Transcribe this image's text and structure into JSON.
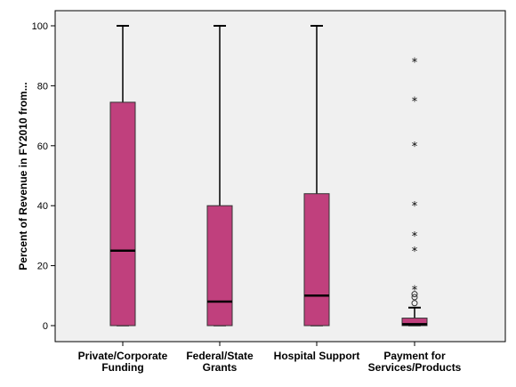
{
  "chart_data": {
    "type": "boxplot",
    "ylabel": "Percent of Revenue in FY2010 from...",
    "ylim": [
      0,
      100
    ],
    "yticks": [
      0,
      20,
      40,
      60,
      80,
      100
    ],
    "grid": false,
    "plot_background": "#f0f0f0",
    "box_color": "#c0407d",
    "categories": [
      "Private/Corporate Funding",
      "Federal/State Grants",
      "Hospital Support",
      "Payment for Services/Products"
    ],
    "category_label_lines": [
      [
        "Private/Corporate",
        "Funding"
      ],
      [
        "Federal/State",
        "Grants"
      ],
      [
        "Hospital Support"
      ],
      [
        "Payment for",
        "Services/Products"
      ]
    ],
    "boxes": [
      {
        "min": 0,
        "q1": 0,
        "median": 25,
        "q3": 74.5,
        "max": 100,
        "outliers": [],
        "extremes": []
      },
      {
        "min": 0,
        "q1": 0,
        "median": 8,
        "q3": 40,
        "max": 100,
        "outliers": [],
        "extremes": []
      },
      {
        "min": 0,
        "q1": 0,
        "median": 10,
        "q3": 44,
        "max": 100,
        "outliers": [],
        "extremes": []
      },
      {
        "min": 0,
        "q1": 0,
        "median": 0.5,
        "q3": 2.5,
        "max": 6,
        "outliers": [
          7.5,
          9.5,
          10.5
        ],
        "extremes": [
          12,
          25,
          30,
          40,
          60,
          75,
          88
        ]
      }
    ]
  }
}
